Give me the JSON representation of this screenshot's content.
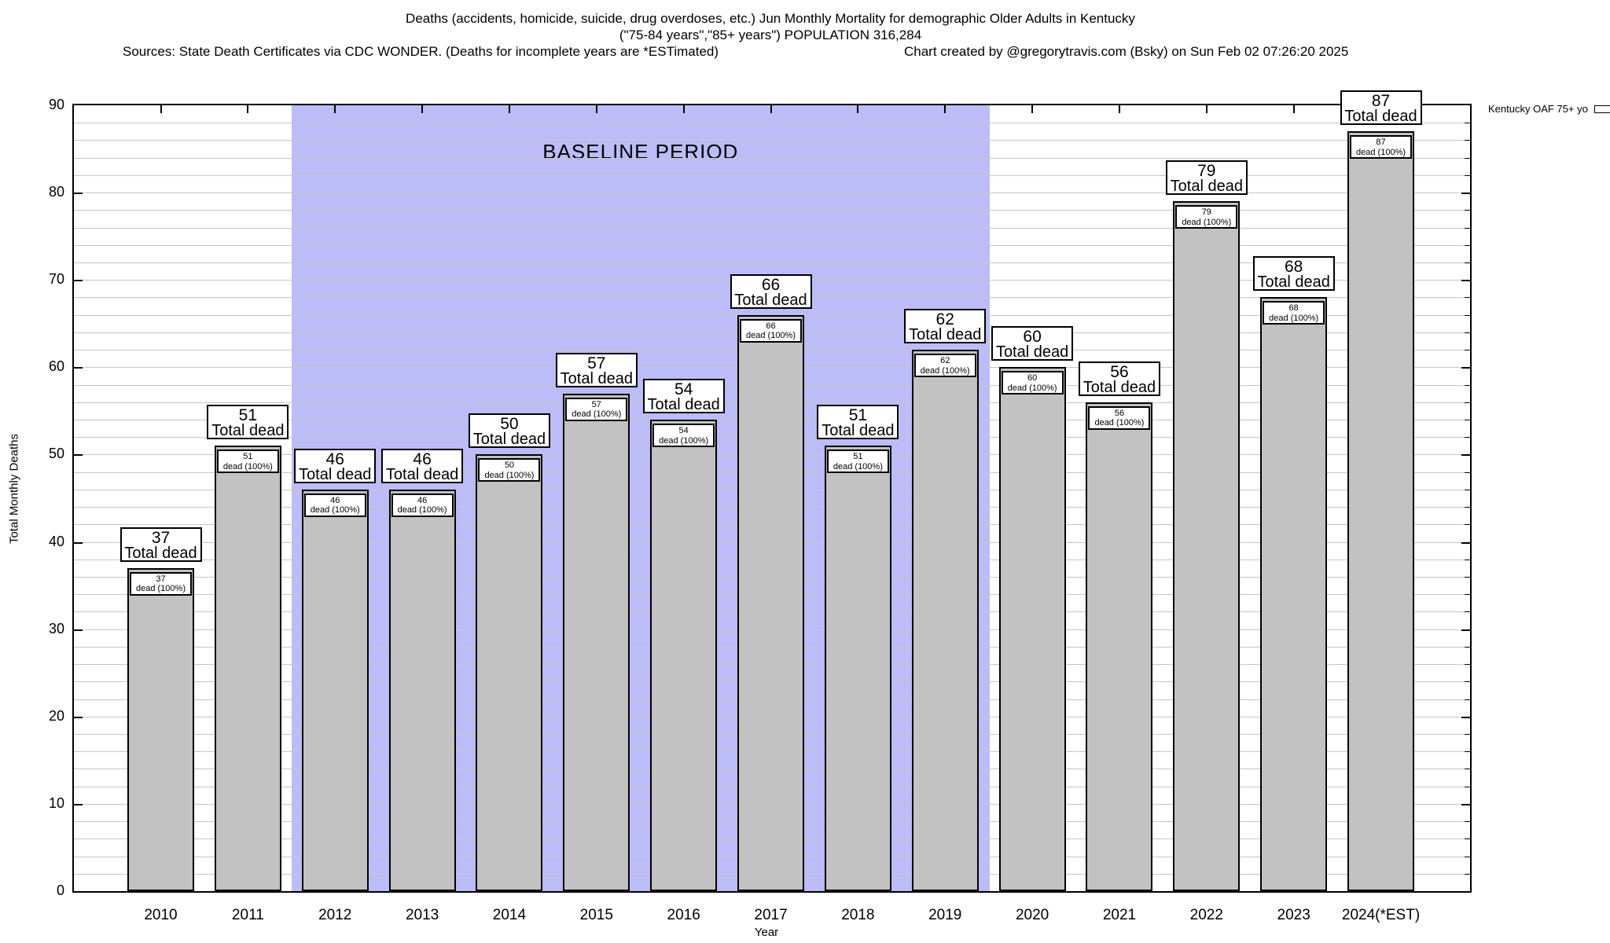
{
  "header": {
    "title_line1": "Deaths (accidents, homicide, suicide, drug overdoses, etc.) Jun Monthly Mortality for demographic Older Adults in Kentucky",
    "title_line2": "(\"75-84 years\",\"85+ years\") POPULATION 316,284",
    "sources": "Sources: State Death Certificates via CDC WONDER. (Deaths for incomplete years are *ESTimated)",
    "credit": "Chart created by @gregorytravis.com (Bsky) on Sun Feb 02 07:26:20 2025"
  },
  "legend": {
    "label": "Kentucky OAF 75+ yo"
  },
  "chart_data": {
    "type": "bar",
    "title": "Deaths (accidents, homicide, suicide, drug overdoses, etc.) Jun Monthly Mortality for demographic Older Adults in Kentucky",
    "subtitle": "(\"75-84 years\",\"85+ years\") POPULATION 316,284",
    "categories": [
      "2010",
      "2011",
      "2012",
      "2013",
      "2014",
      "2015",
      "2016",
      "2017",
      "2018",
      "2019",
      "2020",
      "2021",
      "2022",
      "2023",
      "2024(*EST)"
    ],
    "series": [
      {
        "name": "Kentucky OAF 75+ yo",
        "values": [
          37,
          51,
          46,
          46,
          50,
          57,
          54,
          66,
          51,
          62,
          60,
          56,
          79,
          68,
          87
        ]
      }
    ],
    "xlabel": "Year",
    "ylabel": "Total Monthly Deaths",
    "ylim": [
      0,
      90
    ],
    "ytick_step": 10,
    "grid_step": 2,
    "grid": true,
    "legend_position": "top-right-outside",
    "baseline_region": {
      "label": "BASELINE PERIOD",
      "from_category": "2012",
      "to_category": "2019",
      "span_indices": [
        1.5,
        9.51
      ]
    },
    "bar_top_annotation_suffix": "Total dead",
    "bar_inner_annotation_suffix": "dead (100%)",
    "colors": {
      "bar_fill": "#c2c2c2",
      "bar_border": "#000000",
      "baseline_fill": "#bcbcf8",
      "grid": "#c6c6c6",
      "axis": "#000000"
    }
  }
}
